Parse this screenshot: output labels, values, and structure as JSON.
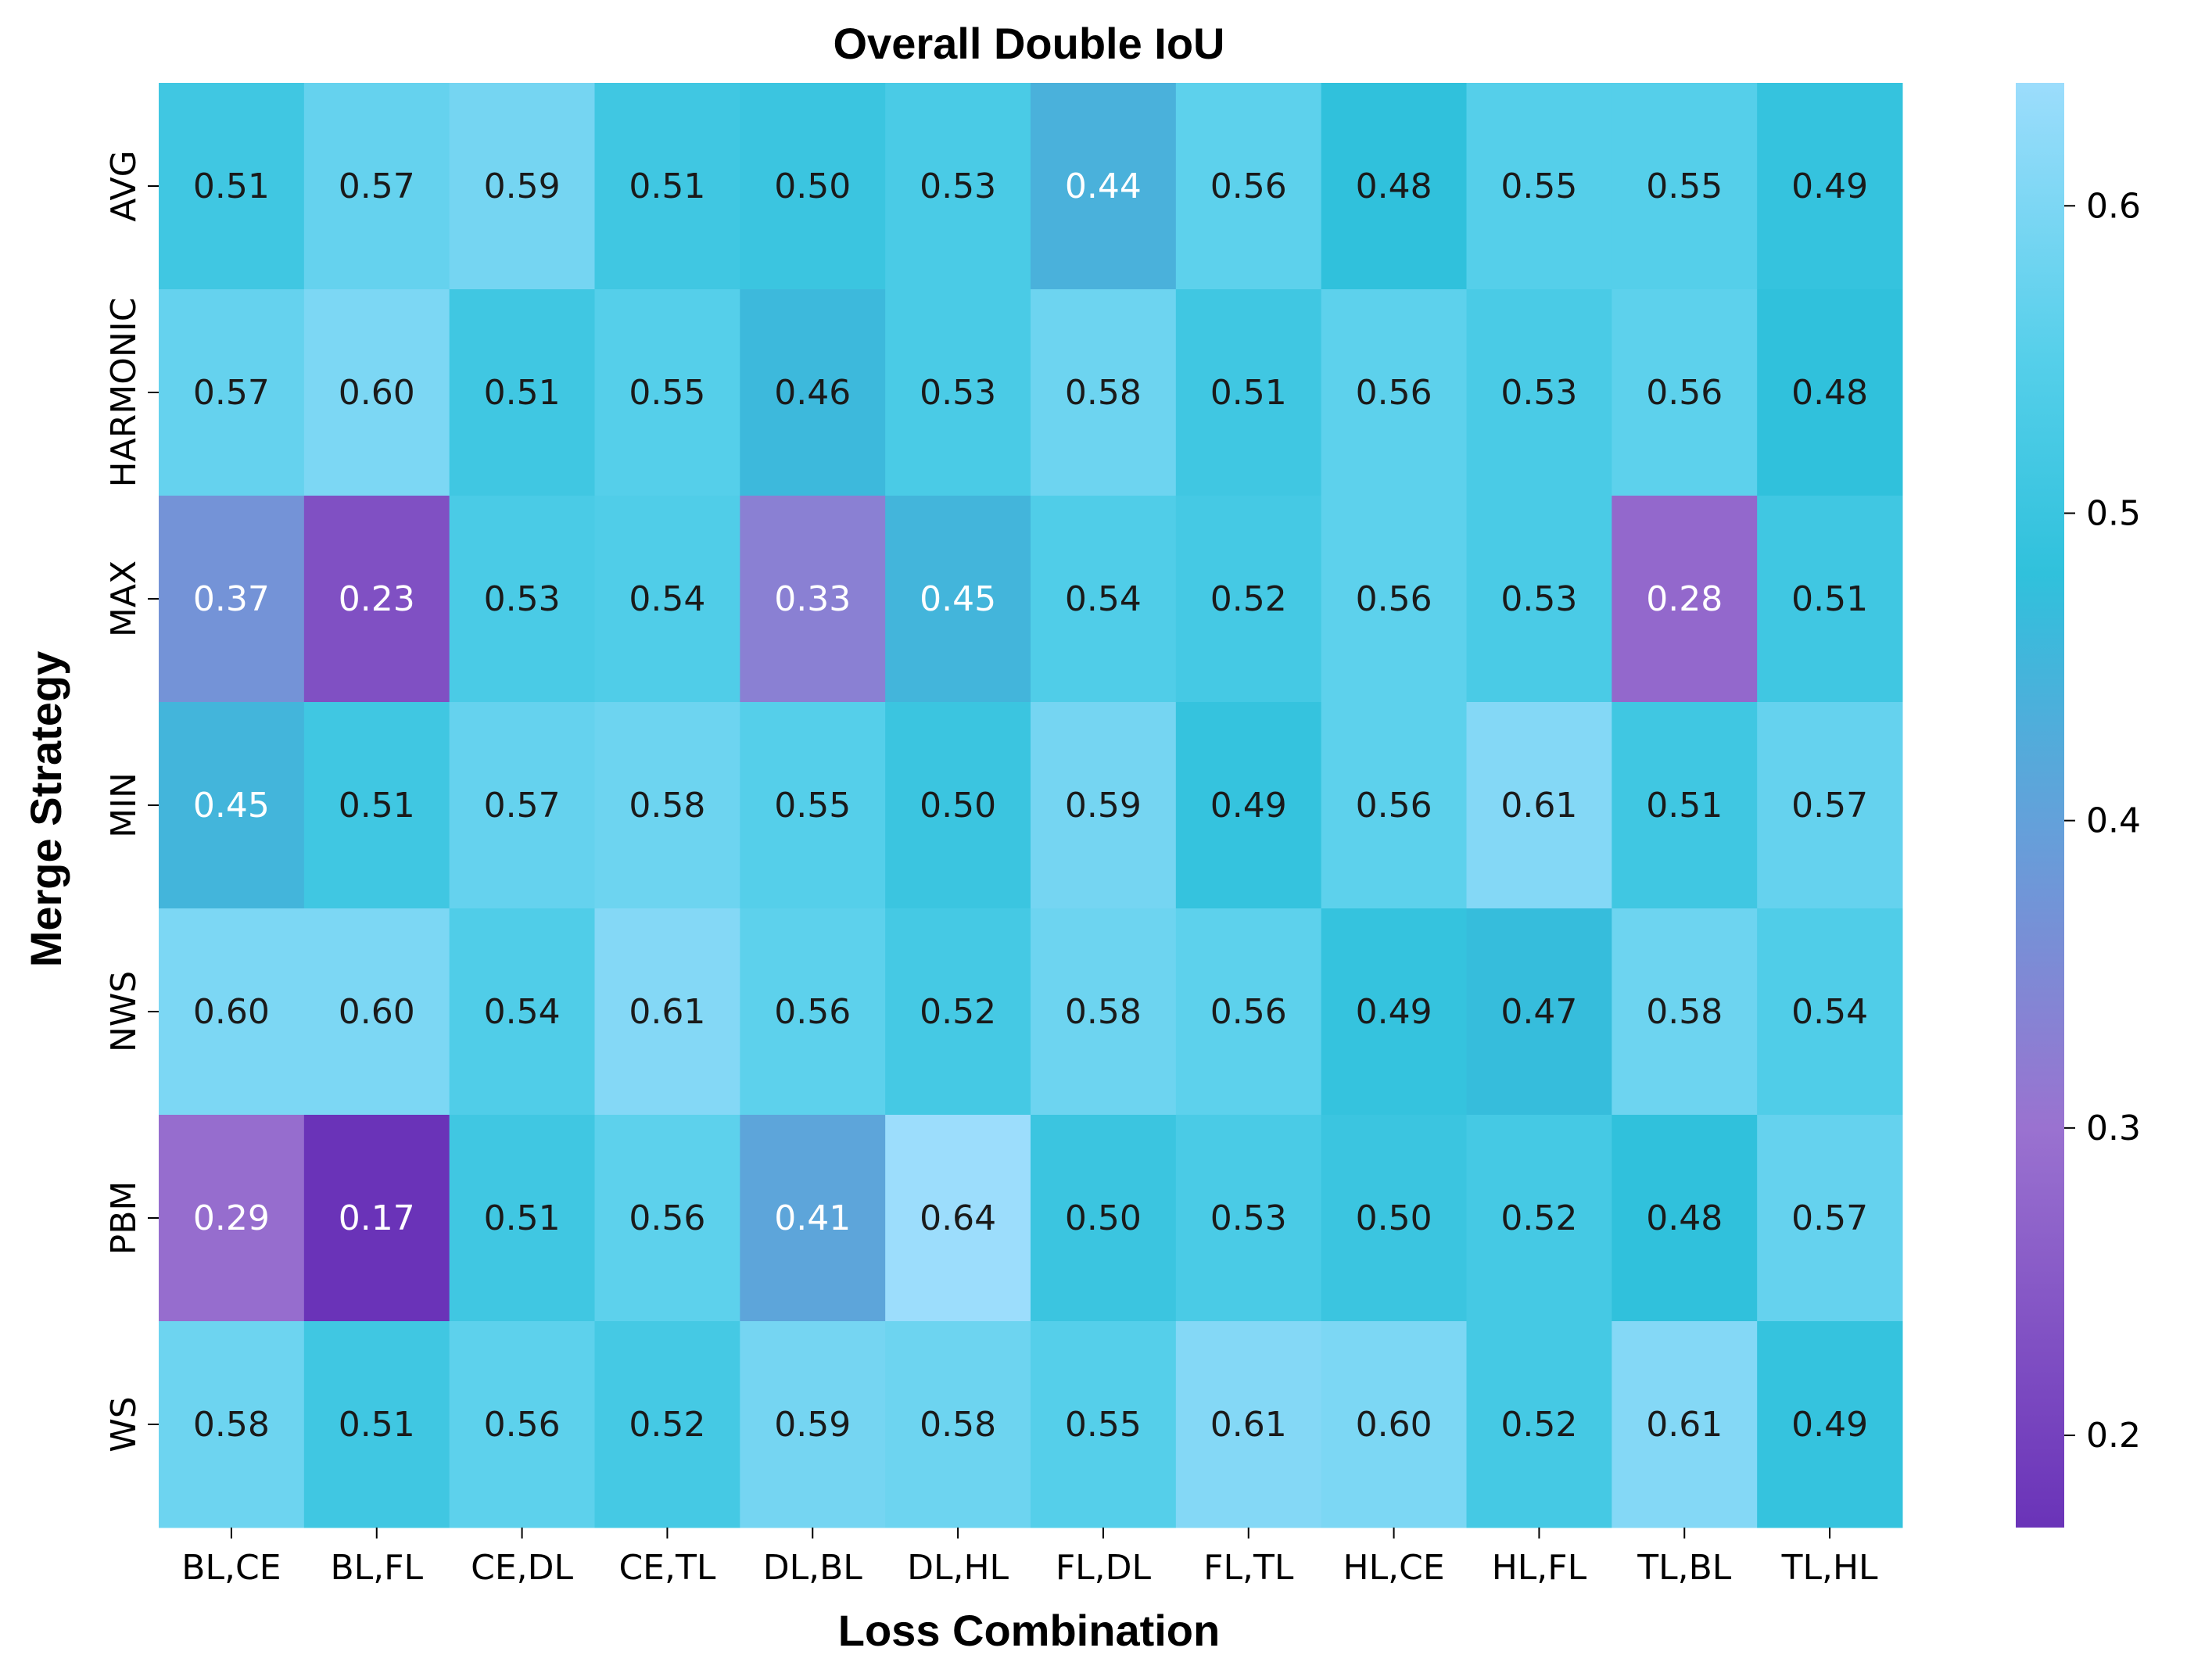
{
  "chart_data": {
    "type": "heatmap",
    "title": "Overall Double IoU",
    "xlabel": "Loss Combination",
    "ylabel": "Merge Strategy",
    "x_categories": [
      "BL,CE",
      "BL,FL",
      "CE,DL",
      "CE,TL",
      "DL,BL",
      "DL,HL",
      "FL,DL",
      "FL,TL",
      "HL,CE",
      "HL,FL",
      "TL,BL",
      "TL,HL"
    ],
    "y_categories": [
      "AVG",
      "HARMONIC",
      "MAX",
      "MIN",
      "NWS",
      "PBM",
      "WS"
    ],
    "values": [
      [
        0.51,
        0.57,
        0.59,
        0.51,
        0.5,
        0.53,
        0.44,
        0.56,
        0.48,
        0.55,
        0.55,
        0.49
      ],
      [
        0.57,
        0.6,
        0.51,
        0.55,
        0.46,
        0.53,
        0.58,
        0.51,
        0.56,
        0.53,
        0.56,
        0.48
      ],
      [
        0.37,
        0.23,
        0.53,
        0.54,
        0.33,
        0.45,
        0.54,
        0.52,
        0.56,
        0.53,
        0.28,
        0.51
      ],
      [
        0.45,
        0.51,
        0.57,
        0.58,
        0.55,
        0.5,
        0.59,
        0.49,
        0.56,
        0.61,
        0.51,
        0.57
      ],
      [
        0.6,
        0.6,
        0.54,
        0.61,
        0.56,
        0.52,
        0.58,
        0.56,
        0.49,
        0.47,
        0.58,
        0.54
      ],
      [
        0.29,
        0.17,
        0.51,
        0.56,
        0.41,
        0.64,
        0.5,
        0.53,
        0.5,
        0.52,
        0.48,
        0.57
      ],
      [
        0.58,
        0.51,
        0.56,
        0.52,
        0.59,
        0.58,
        0.55,
        0.61,
        0.6,
        0.52,
        0.61,
        0.49
      ]
    ],
    "value_format": "2 decimals",
    "color_range": [
      0.17,
      0.64
    ],
    "colorbar_ticks": [
      "0.2",
      "0.3",
      "0.4",
      "0.5",
      "0.6"
    ],
    "colormap_stops": [
      {
        "value": 0.17,
        "color": "#6a33b8"
      },
      {
        "value": 0.3,
        "color": "#9a72d0"
      },
      {
        "value": 0.4,
        "color": "#63a1da"
      },
      {
        "value": 0.48,
        "color": "#30c1dc"
      },
      {
        "value": 0.55,
        "color": "#55cfea"
      },
      {
        "value": 0.64,
        "color": "#9cddfc"
      }
    ],
    "text_color_dark": "#1a1a1a",
    "text_color_light": "#ffffff",
    "grid": false,
    "colorbar": "right"
  }
}
